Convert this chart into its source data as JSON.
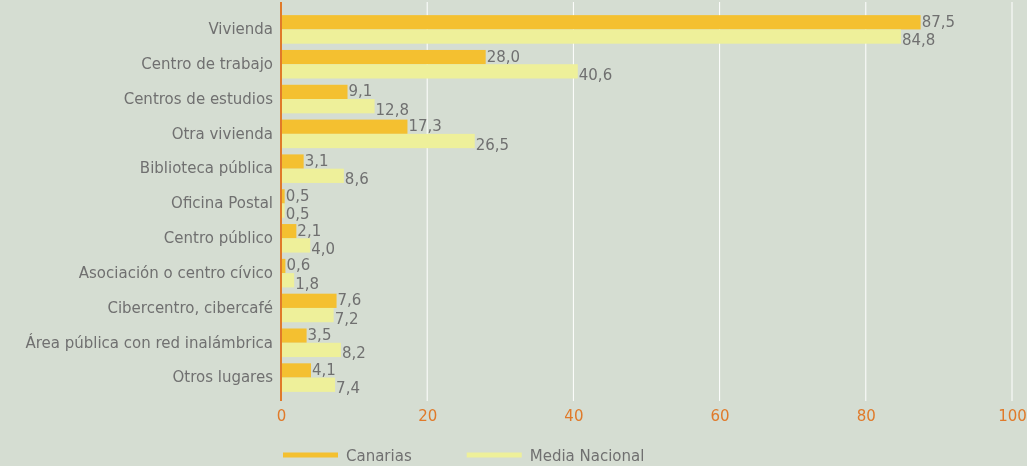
{
  "chart_data": {
    "type": "bar",
    "orientation": "horizontal",
    "categories": [
      "Vivienda",
      "Centro de trabajo",
      "Centros de estudios",
      "Otra vivienda",
      "Biblioteca pública",
      "Oficina Postal",
      "Centro público",
      "Asociación o centro cívico",
      "Cibercentro, cibercafé",
      "Área pública con red inalámbrica",
      "Otros lugares"
    ],
    "series": [
      {
        "name": "Canarias",
        "color": "#f4c030",
        "values": [
          87.5,
          28.0,
          9.1,
          17.3,
          3.1,
          0.5,
          2.1,
          0.6,
          7.6,
          3.5,
          4.1
        ],
        "value_labels": [
          "87,5",
          "28,0",
          "9,1",
          "17,3",
          "3,1",
          "0,5",
          "2,1",
          "0,6",
          "7,6",
          "3,5",
          "4,1"
        ]
      },
      {
        "name": "Media Nacional",
        "color": "#eef09a",
        "values": [
          84.8,
          40.6,
          12.8,
          26.5,
          8.6,
          0.5,
          4.0,
          1.8,
          7.2,
          8.2,
          7.4
        ],
        "value_labels": [
          "84,8",
          "40,6",
          "12,8",
          "26,5",
          "8,6",
          "0,5",
          "4,0",
          "1,8",
          "7,2",
          "8,2",
          "7,4"
        ]
      }
    ],
    "xlim": [
      0,
      100
    ],
    "xticks": [
      0,
      20,
      40,
      60,
      80,
      100
    ],
    "grid": "x",
    "legend": "bottom"
  }
}
